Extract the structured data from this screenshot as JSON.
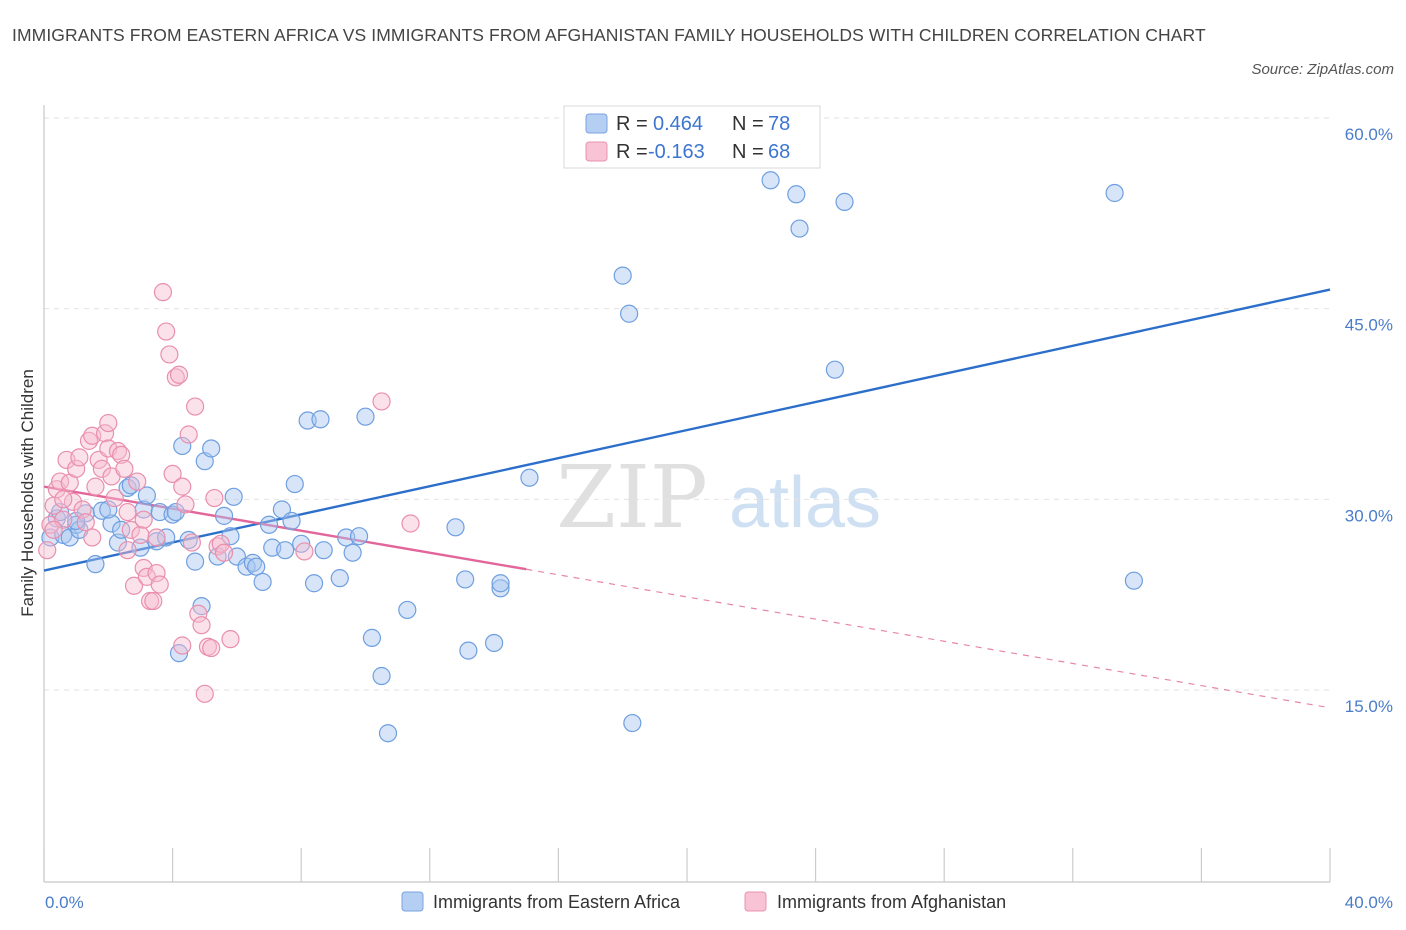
{
  "title": "IMMIGRANTS FROM EASTERN AFRICA VS IMMIGRANTS FROM AFGHANISTAN FAMILY HOUSEHOLDS WITH CHILDREN CORRELATION CHART",
  "source": "Source: ZipAtlas.com",
  "watermark": {
    "zip": "ZIP",
    "atlas": "atlas"
  },
  "legend_box": {
    "rows": [
      {
        "r_label": "R =",
        "r_value": "0.464",
        "n_label": "N =",
        "n_value": "78"
      },
      {
        "r_label": "R =",
        "r_value": "-0.163",
        "n_label": "N =",
        "n_value": "68"
      }
    ]
  },
  "chart_data": {
    "type": "scatter",
    "ylabel": "Family Households with Children",
    "xlim": [
      0,
      40
    ],
    "ylim": [
      0,
      63
    ],
    "x_tick_labels": {
      "0": "0.0%",
      "40": "40.0%"
    },
    "y_ticks": [
      15,
      30,
      45,
      60
    ],
    "y_tick_labels": [
      "15.0%",
      "30.0%",
      "45.0%",
      "60.0%"
    ],
    "series": [
      {
        "name": "Immigrants from Eastern Africa",
        "color": "#6e9fe0",
        "fill": "#a9c6f0",
        "line_color": "#2c6fcb",
        "trend": {
          "x0": 0,
          "y0": 24.4,
          "x1": 40,
          "y1": 46.5
        },
        "points": [
          [
            0.2,
            27.0
          ],
          [
            0.4,
            28.5
          ],
          [
            0.5,
            29.0
          ],
          [
            0.6,
            27.2
          ],
          [
            0.8,
            27.0
          ],
          [
            1.0,
            28.0
          ],
          [
            1.1,
            27.6
          ],
          [
            1.3,
            28.9
          ],
          [
            1.6,
            24.9
          ],
          [
            1.8,
            29.1
          ],
          [
            2.1,
            28.1
          ],
          [
            2.3,
            26.6
          ],
          [
            2.4,
            27.6
          ],
          [
            2.6,
            30.9
          ],
          [
            2.7,
            31.1
          ],
          [
            3.0,
            26.2
          ],
          [
            3.1,
            29.2
          ],
          [
            3.2,
            30.3
          ],
          [
            3.5,
            26.7
          ],
          [
            3.6,
            29.0
          ],
          [
            3.8,
            27.0
          ],
          [
            4.0,
            28.8
          ],
          [
            4.1,
            29.0
          ],
          [
            4.2,
            17.9
          ],
          [
            4.3,
            34.2
          ],
          [
            4.5,
            26.8
          ],
          [
            4.7,
            25.1
          ],
          [
            4.9,
            21.6
          ],
          [
            5.0,
            33.0
          ],
          [
            5.2,
            34.0
          ],
          [
            5.4,
            25.5
          ],
          [
            5.6,
            28.7
          ],
          [
            5.8,
            27.1
          ],
          [
            5.9,
            30.2
          ],
          [
            6.0,
            25.5
          ],
          [
            6.3,
            24.7
          ],
          [
            6.5,
            25.0
          ],
          [
            6.6,
            24.7
          ],
          [
            6.8,
            23.5
          ],
          [
            7.0,
            28.0
          ],
          [
            7.1,
            26.2
          ],
          [
            7.4,
            29.2
          ],
          [
            7.5,
            26.0
          ],
          [
            7.7,
            28.3
          ],
          [
            7.8,
            31.2
          ],
          [
            8.0,
            26.5
          ],
          [
            8.2,
            36.2
          ],
          [
            8.4,
            23.4
          ],
          [
            8.6,
            36.3
          ],
          [
            8.7,
            26.0
          ],
          [
            9.2,
            23.8
          ],
          [
            9.4,
            27.0
          ],
          [
            9.6,
            25.8
          ],
          [
            9.8,
            27.1
          ],
          [
            10.0,
            36.5
          ],
          [
            10.2,
            19.1
          ],
          [
            10.5,
            16.1
          ],
          [
            10.7,
            11.6
          ],
          [
            11.3,
            21.3
          ],
          [
            12.8,
            27.8
          ],
          [
            13.1,
            23.7
          ],
          [
            13.2,
            18.1
          ],
          [
            14.0,
            18.7
          ],
          [
            14.2,
            23.0
          ],
          [
            14.2,
            23.4
          ],
          [
            15.1,
            31.7
          ],
          [
            18.0,
            47.6
          ],
          [
            18.2,
            44.6
          ],
          [
            18.3,
            12.4
          ],
          [
            22.6,
            55.1
          ],
          [
            23.4,
            54.0
          ],
          [
            23.5,
            51.3
          ],
          [
            24.6,
            40.2
          ],
          [
            24.9,
            53.4
          ],
          [
            33.3,
            54.1
          ],
          [
            33.9,
            23.6
          ],
          [
            1.0,
            28.3
          ],
          [
            2.0,
            29.2
          ]
        ]
      },
      {
        "name": "Immigrants from Afghanistan",
        "color": "#e98fae",
        "fill": "#f6bdd0",
        "line_color": "#e2669a",
        "trend": {
          "x0": 0,
          "y0": 31.0,
          "x1": 15.0,
          "y1": 24.5
        },
        "trend_ext": {
          "x0": 15.0,
          "y0": 24.5,
          "x1": 40,
          "y1": 13.6
        },
        "points": [
          [
            0.1,
            26.0
          ],
          [
            0.2,
            28.0
          ],
          [
            0.3,
            29.5
          ],
          [
            0.4,
            30.8
          ],
          [
            0.5,
            31.4
          ],
          [
            0.6,
            28.4
          ],
          [
            0.7,
            33.1
          ],
          [
            0.8,
            31.3
          ],
          [
            0.9,
            29.8
          ],
          [
            1.0,
            32.4
          ],
          [
            1.1,
            33.3
          ],
          [
            1.2,
            29.2
          ],
          [
            1.3,
            28.2
          ],
          [
            1.4,
            34.6
          ],
          [
            1.5,
            35.0
          ],
          [
            1.6,
            31.0
          ],
          [
            1.7,
            33.1
          ],
          [
            1.8,
            32.4
          ],
          [
            1.9,
            35.2
          ],
          [
            2.0,
            34.0
          ],
          [
            2.1,
            31.8
          ],
          [
            2.2,
            30.1
          ],
          [
            2.3,
            33.8
          ],
          [
            2.4,
            33.5
          ],
          [
            2.5,
            32.4
          ],
          [
            2.6,
            29.0
          ],
          [
            2.7,
            27.6
          ],
          [
            2.8,
            23.2
          ],
          [
            2.9,
            31.4
          ],
          [
            3.0,
            27.2
          ],
          [
            3.1,
            24.6
          ],
          [
            3.2,
            23.9
          ],
          [
            3.3,
            22.0
          ],
          [
            3.4,
            22.0
          ],
          [
            3.5,
            24.2
          ],
          [
            3.6,
            23.3
          ],
          [
            3.7,
            46.3
          ],
          [
            3.8,
            43.2
          ],
          [
            3.9,
            41.4
          ],
          [
            4.0,
            32.0
          ],
          [
            4.1,
            39.6
          ],
          [
            4.2,
            39.8
          ],
          [
            4.3,
            31.0
          ],
          [
            4.4,
            29.6
          ],
          [
            4.5,
            35.1
          ],
          [
            4.6,
            26.6
          ],
          [
            4.7,
            37.3
          ],
          [
            4.8,
            21.0
          ],
          [
            4.9,
            20.1
          ],
          [
            5.0,
            14.7
          ],
          [
            5.1,
            18.4
          ],
          [
            5.2,
            18.3
          ],
          [
            5.3,
            30.1
          ],
          [
            5.4,
            26.3
          ],
          [
            5.5,
            26.5
          ],
          [
            5.6,
            25.8
          ],
          [
            5.8,
            19.0
          ],
          [
            2.6,
            26.0
          ],
          [
            3.5,
            27.0
          ],
          [
            4.3,
            18.5
          ],
          [
            1.5,
            27.0
          ],
          [
            8.1,
            25.9
          ],
          [
            10.5,
            37.7
          ],
          [
            11.4,
            28.1
          ],
          [
            0.3,
            27.6
          ],
          [
            0.6,
            30.0
          ],
          [
            2.0,
            36.0
          ],
          [
            3.1,
            28.4
          ]
        ]
      }
    ]
  }
}
